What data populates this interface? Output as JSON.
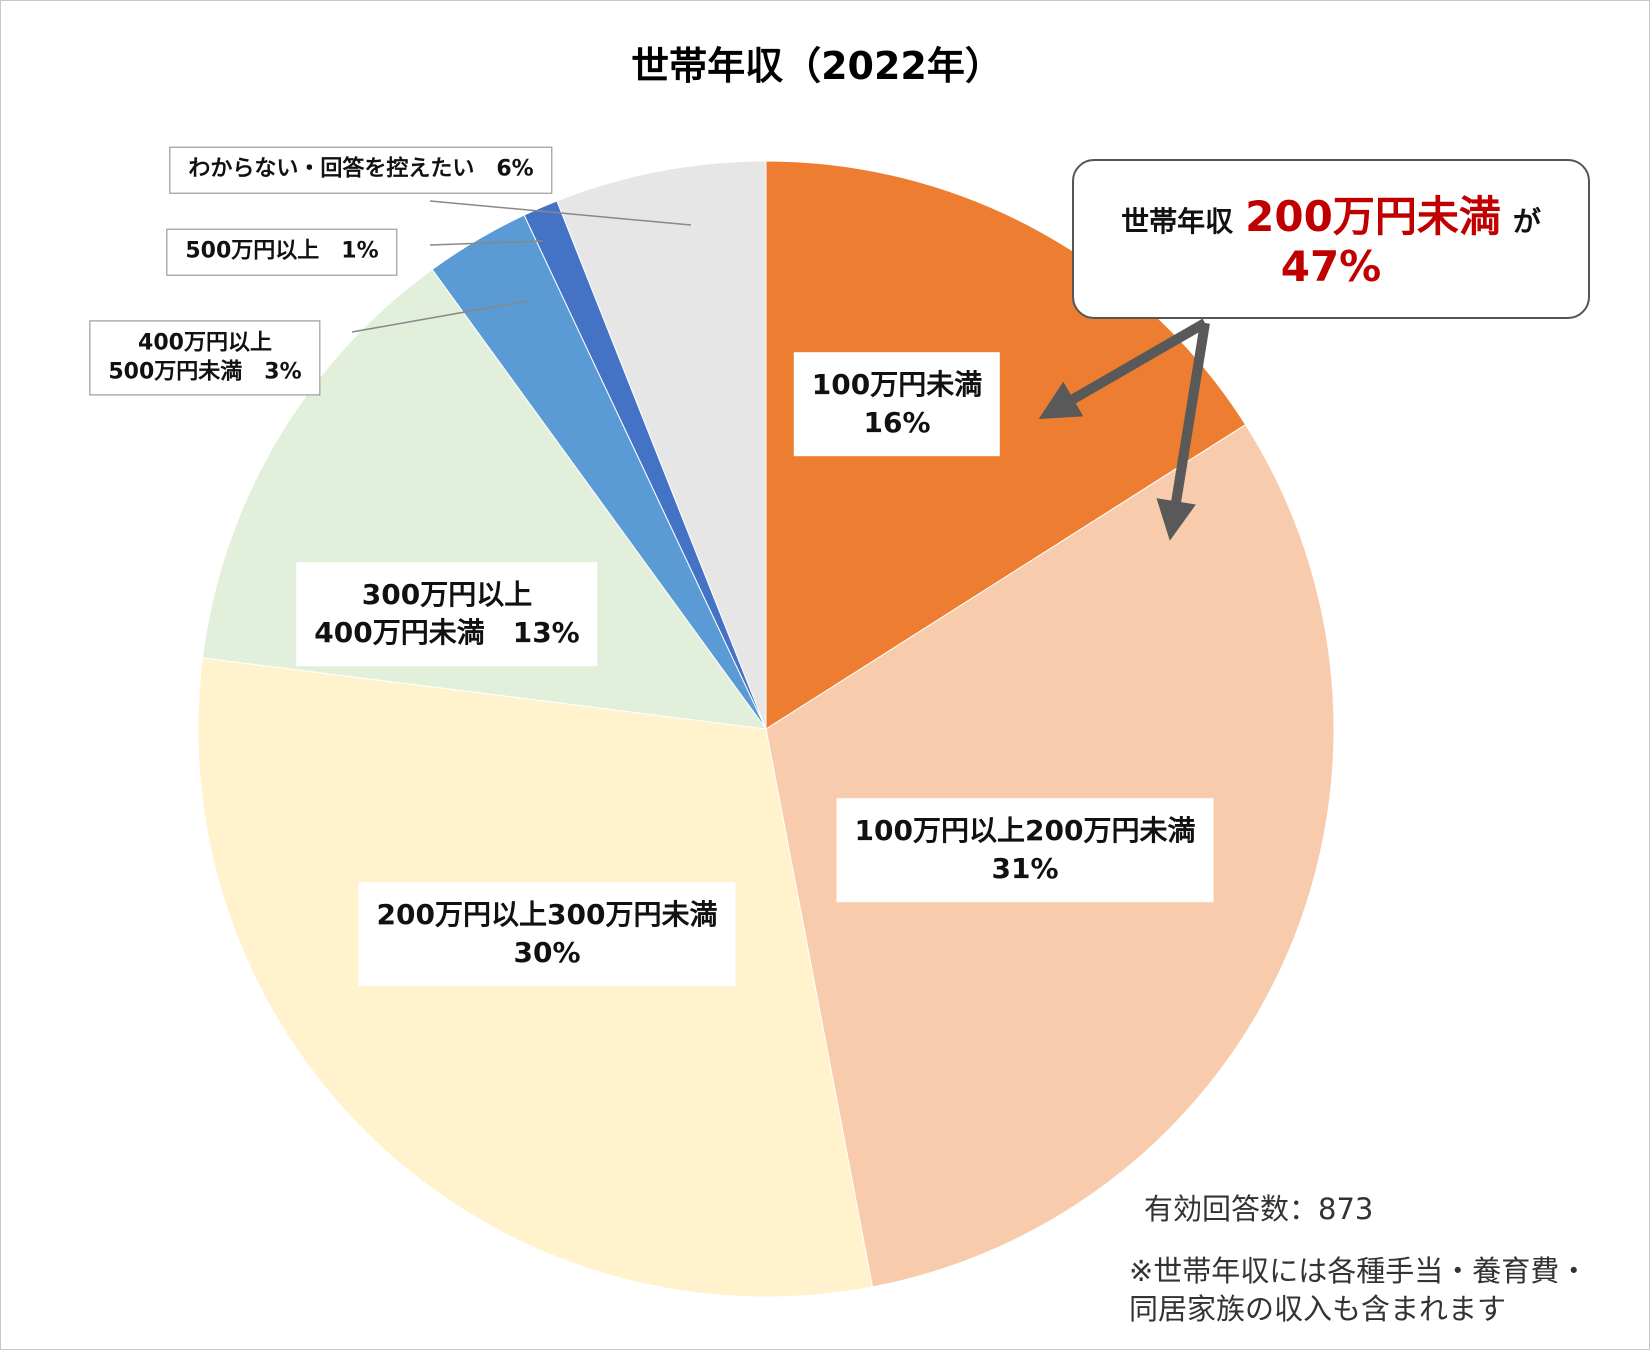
{
  "chart_data": {
    "type": "pie",
    "title": "世帯年収（2022年）",
    "categories": [
      "100万円未満",
      "100万円以上200万円未満",
      "200万円以上300万円未満",
      "300万円以上\n400万円未満",
      "400万円以上\n500万円未満",
      "500万円以上",
      "わからない・回答を控えたい"
    ],
    "values": [
      16,
      31,
      30,
      13,
      3,
      1,
      6
    ],
    "value_labels": [
      "16%",
      "31%",
      "30%",
      "13%",
      "3%",
      "1%",
      "6%"
    ],
    "colors": [
      "#ED7D31",
      "#F8CBAD",
      "#FFF2CC",
      "#E2EFDA",
      "#5B9BD5",
      "#4472C4",
      "#E7E6E6"
    ],
    "callout": {
      "prefix": "世帯年収",
      "highlight": "200万円未満",
      "suffix": "が",
      "value": "47%"
    },
    "note": "有効回答数：873",
    "footnote": "※世帯年収には各種手当・養育費・\n同居家族の収入も含まれます"
  }
}
